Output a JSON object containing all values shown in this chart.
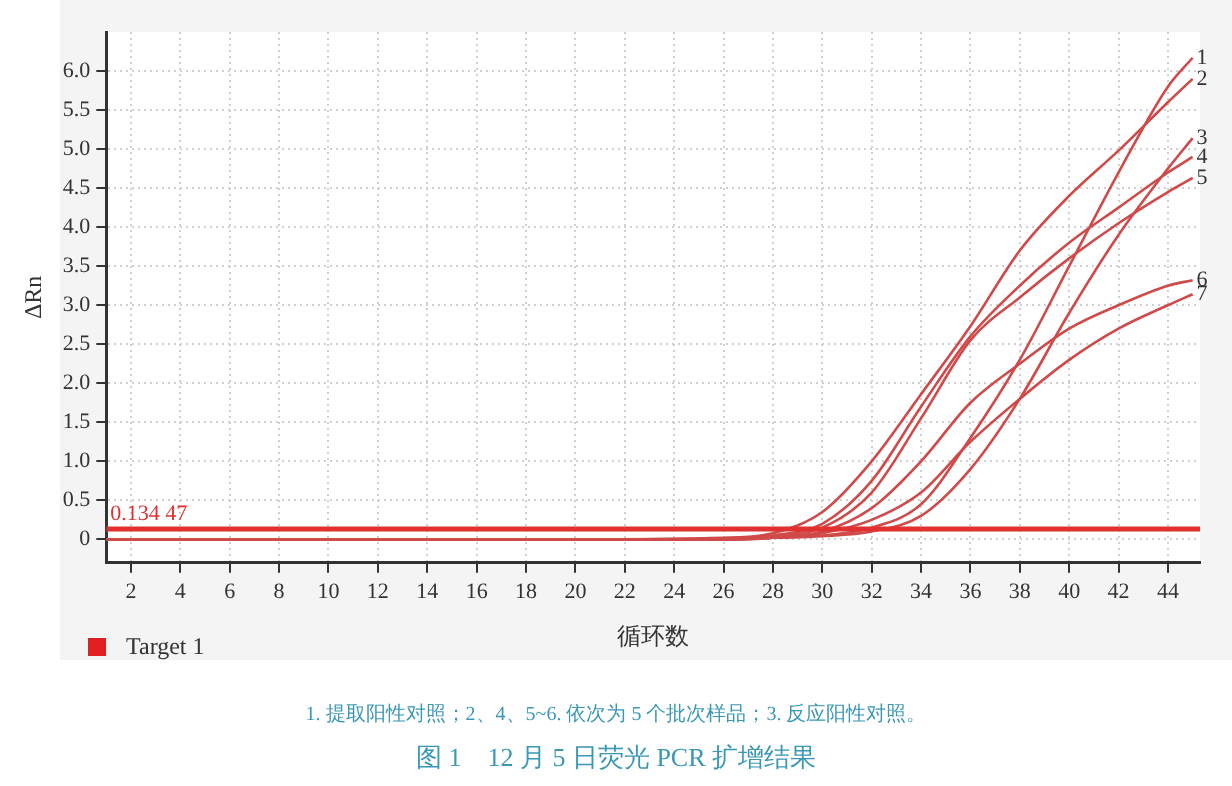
{
  "chart_data": {
    "type": "line",
    "title": "图 1　12 月 5 日荧光 PCR 扩增结果",
    "xlabel": "循环数",
    "ylabel": "ΔRn",
    "legend_title": "Target 1",
    "annotations": [
      "1. 提取阳性对照；2、4、5~6. 依次为 5 个批次样品；3. 反应阳性对照。"
    ],
    "x": [
      1,
      10,
      20,
      26,
      28,
      30,
      32,
      34,
      36,
      38,
      40,
      42,
      44,
      45
    ],
    "series": [
      {
        "name": "1",
        "color": "#d04a4a",
        "values": [
          0,
          0,
          0,
          0,
          0.02,
          0.05,
          0.15,
          0.45,
          1.3,
          2.3,
          3.5,
          4.7,
          5.8,
          6.17
        ]
      },
      {
        "name": "2",
        "color": "#d04a4a",
        "values": [
          0,
          0,
          0,
          0.02,
          0.08,
          0.35,
          1.0,
          1.86,
          2.73,
          3.7,
          4.4,
          4.98,
          5.6,
          5.9
        ]
      },
      {
        "name": "3",
        "color": "#d04a4a",
        "values": [
          0,
          0,
          0,
          0,
          0.02,
          0.04,
          0.1,
          0.3,
          0.9,
          1.8,
          2.9,
          3.9,
          4.75,
          5.14
        ]
      },
      {
        "name": "4",
        "color": "#d04a4a",
        "values": [
          0,
          0,
          0,
          0.01,
          0.05,
          0.2,
          0.75,
          1.7,
          2.6,
          3.25,
          3.8,
          4.25,
          4.7,
          4.9
        ]
      },
      {
        "name": "5",
        "color": "#d04a4a",
        "values": [
          0,
          0,
          0,
          0.01,
          0.04,
          0.15,
          0.6,
          1.55,
          2.55,
          3.1,
          3.6,
          4.05,
          4.45,
          4.63
        ]
      },
      {
        "name": "6",
        "color": "#d04a4a",
        "values": [
          0,
          0,
          0,
          0,
          0.02,
          0.1,
          0.4,
          1.0,
          1.75,
          2.25,
          2.7,
          3.0,
          3.25,
          3.32
        ]
      },
      {
        "name": "7",
        "color": "#d04a4a",
        "values": [
          0,
          0,
          0,
          0,
          0.02,
          0.08,
          0.25,
          0.6,
          1.25,
          1.8,
          2.3,
          2.7,
          3.0,
          3.14
        ]
      }
    ],
    "ref_lines": [
      {
        "axis": "y",
        "value": 0.13447,
        "label": "0.134 47",
        "color": "#e03030"
      }
    ],
    "xlim": [
      1,
      45.3
    ],
    "xticks": [
      2,
      4,
      6,
      8,
      10,
      12,
      14,
      16,
      18,
      20,
      22,
      24,
      26,
      28,
      30,
      32,
      34,
      36,
      38,
      40,
      42,
      44
    ],
    "ylim": [
      -0.3,
      6.5
    ],
    "yticks": [
      0,
      {
        "value": 0.5,
        "label": "0.5"
      },
      {
        "value": 1,
        "label": "1.0"
      },
      {
        "value": 1.5,
        "label": "1.5"
      },
      {
        "value": 2,
        "label": "2.0"
      },
      {
        "value": 2.5,
        "label": "2.5"
      },
      {
        "value": 3,
        "label": "3.0"
      },
      {
        "value": 3.5,
        "label": "3.5"
      },
      {
        "value": 4,
        "label": "4.0"
      },
      {
        "value": 4.5,
        "label": "4.5"
      },
      {
        "value": 5,
        "label": "5.0"
      },
      {
        "value": 5.5,
        "label": "5.5"
      },
      {
        "value": 6,
        "label": "6.0"
      }
    ],
    "grid": true,
    "marker": "none",
    "line_style": "solid"
  }
}
